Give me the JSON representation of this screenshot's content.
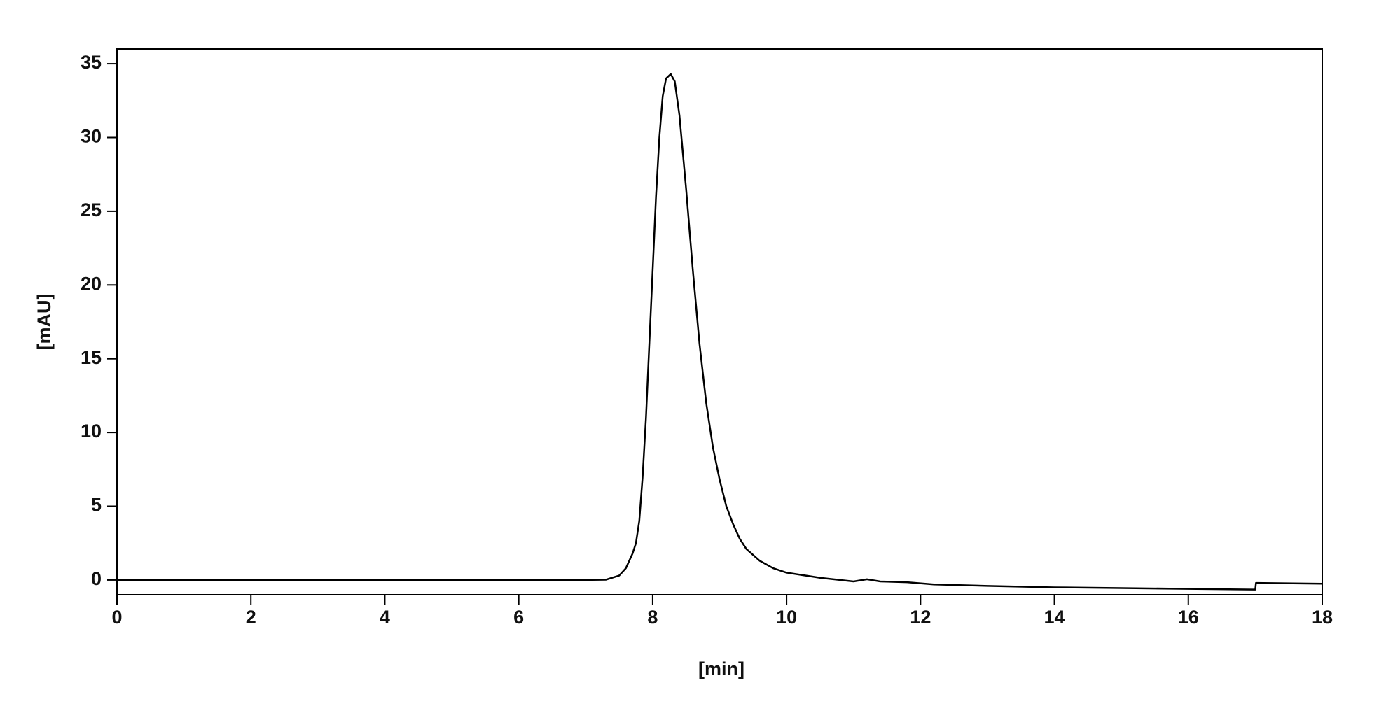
{
  "chart_data": {
    "type": "line",
    "x_label": "[min]",
    "y_label": "[mAU]",
    "xlim": [
      0,
      18
    ],
    "ylim": [
      -1,
      36
    ],
    "xticks": [
      0,
      2,
      4,
      6,
      8,
      10,
      12,
      14,
      16,
      18
    ],
    "yticks": [
      0,
      5,
      10,
      15,
      20,
      25,
      30,
      35
    ],
    "grid": false,
    "series": [
      {
        "color": "#000000",
        "x": [
          0,
          7.0,
          7.3,
          7.5,
          7.6,
          7.7,
          7.75,
          7.8,
          7.85,
          7.9,
          7.95,
          8.0,
          8.05,
          8.1,
          8.15,
          8.2,
          8.27,
          8.33,
          8.4,
          8.5,
          8.6,
          8.7,
          8.8,
          8.9,
          9.0,
          9.1,
          9.2,
          9.3,
          9.4,
          9.6,
          9.8,
          10.0,
          10.5,
          11.0,
          11.2,
          11.4,
          11.8,
          12.2,
          13,
          14,
          15,
          16,
          17.0,
          17.01,
          18
        ],
        "values": [
          0,
          0,
          0.02,
          0.3,
          0.8,
          1.8,
          2.5,
          4,
          7,
          11,
          16,
          21,
          26,
          30,
          32.8,
          34,
          34.3,
          33.8,
          31.5,
          26.5,
          21,
          16,
          12,
          9,
          6.8,
          5,
          3.8,
          2.8,
          2.1,
          1.3,
          0.8,
          0.5,
          0.15,
          -0.1,
          0.05,
          -0.1,
          -0.15,
          -0.3,
          -0.4,
          -0.5,
          -0.55,
          -0.6,
          -0.65,
          -0.2,
          -0.25
        ]
      }
    ]
  }
}
